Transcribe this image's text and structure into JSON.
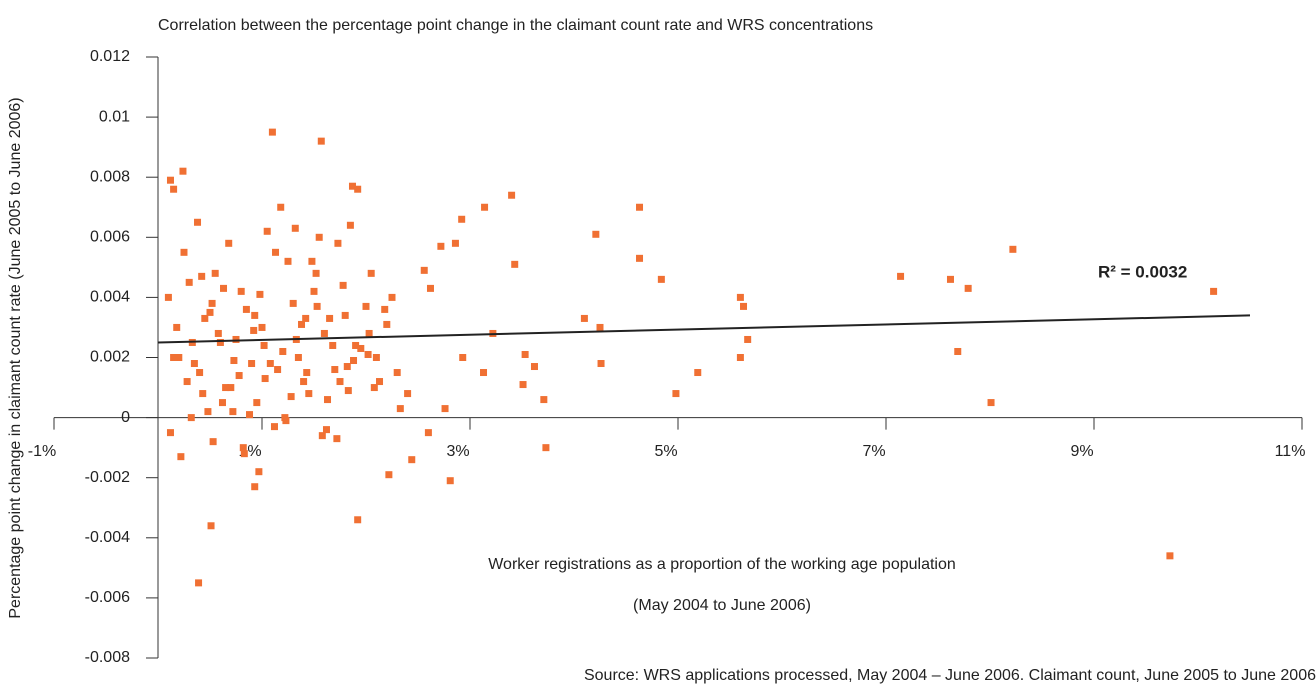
{
  "chart_data": {
    "type": "scatter",
    "title": "Correlation between the percentage point change in the claimant count rate and WRS concentrations",
    "x_label": "Worker registrations as a proportion of the working age population",
    "x_label_2": "(May 2004 to June 2006)",
    "y_label": "Percentage point change in claimant count rate (June 2005 to June 2006)",
    "source": "Source: WRS applications processed, May 2004 – June 2006. Claimant count, June 2005 to June 2006",
    "annotation": "R² = 0.0032",
    "color": "#f07033",
    "xlim": [
      -1,
      11
    ],
    "xticks": [
      {
        "value": -1,
        "label": "-1%"
      },
      {
        "value": 1,
        "label": "1%"
      },
      {
        "value": 3,
        "label": "3%"
      },
      {
        "value": 5,
        "label": "5%"
      },
      {
        "value": 7,
        "label": "7%"
      },
      {
        "value": 9,
        "label": "9%"
      },
      {
        "value": 11,
        "label": "11%"
      }
    ],
    "ylim": [
      -0.008,
      0.012
    ],
    "yticks": [
      -0.008,
      -0.006,
      -0.004,
      -0.002,
      0,
      0.002,
      0.004,
      0.006,
      0.008,
      0.01,
      0.012
    ],
    "trendline": {
      "x": [
        0,
        10.5
      ],
      "values": [
        0.0025,
        0.0034
      ]
    },
    "x": [
      1.1,
      1.57,
      0.24,
      0.12,
      0.15,
      1.87,
      1.92,
      3.4,
      3.14,
      4.63,
      2.92,
      4.21,
      4.63,
      8.22,
      3.43,
      4.84,
      7.14,
      7.62,
      7.79,
      10.15,
      5.6,
      5.63,
      4.1,
      4.25,
      5.67,
      7.69,
      5.6,
      5.19,
      4.26,
      4.98,
      8.01,
      3.71,
      3.73,
      2.81,
      1.92,
      0.51,
      0.39,
      9.73,
      0.93,
      0.97,
      3.13,
      3.51,
      3.62,
      3.53,
      3.22,
      2.62,
      2.56,
      2.72,
      2.86,
      2.93,
      2.76,
      2.6,
      2.44,
      2.22,
      0.1,
      0.2,
      0.3,
      0.4,
      0.5,
      0.6,
      0.7,
      0.8,
      0.9,
      1.0,
      1.2,
      1.3,
      1.4,
      1.5,
      1.6,
      1.7,
      1.8,
      1.9,
      2.0,
      2.1,
      2.2,
      2.3,
      0.15,
      0.25,
      0.35,
      0.45,
      0.55,
      0.65,
      0.75,
      0.85,
      0.95,
      1.05,
      1.15,
      1.25,
      1.35,
      1.45,
      1.55,
      1.65,
      1.75,
      1.85,
      1.95,
      2.05,
      2.25,
      2.4,
      0.12,
      0.28,
      0.38,
      0.48,
      0.58,
      0.68,
      0.78,
      0.88,
      0.98,
      1.08,
      1.18,
      1.28,
      1.38,
      1.48,
      1.58,
      1.68,
      1.78,
      1.88,
      2.08,
      2.18,
      0.18,
      0.33,
      0.43,
      0.53,
      0.63,
      0.73,
      0.83,
      0.93,
      1.03,
      1.13,
      1.23,
      1.33,
      1.43,
      1.53,
      1.63,
      1.73,
      1.83,
      2.03,
      2.13,
      2.33,
      0.22,
      0.42,
      0.62,
      0.82,
      1.02,
      1.22,
      1.42,
      1.62,
      1.82,
      2.02,
      0.32,
      0.72,
      1.12,
      1.52,
      0.52,
      0.92,
      1.32,
      1.72
    ],
    "values": [
      0.0095,
      0.0092,
      0.0082,
      0.0079,
      0.0076,
      0.0077,
      0.0076,
      0.0074,
      0.007,
      0.007,
      0.0066,
      0.0061,
      0.0053,
      0.0056,
      0.0051,
      0.0046,
      0.0047,
      0.0046,
      0.0043,
      0.0042,
      0.004,
      0.0037,
      0.0033,
      0.003,
      0.0026,
      0.0022,
      0.002,
      0.0015,
      0.0018,
      0.0008,
      0.0005,
      0.0006,
      -0.001,
      -0.0021,
      -0.0034,
      -0.0036,
      -0.0055,
      -0.0046,
      -0.0023,
      -0.0018,
      0.0015,
      0.0011,
      0.0017,
      0.0021,
      0.0028,
      0.0043,
      0.0049,
      0.0057,
      0.0058,
      0.002,
      0.0003,
      -0.0005,
      -0.0014,
      -0.0019,
      0.004,
      0.002,
      0.0045,
      0.0015,
      0.0035,
      0.0025,
      0.001,
      0.0042,
      0.0018,
      0.003,
      0.0022,
      0.0038,
      0.0012,
      0.0042,
      0.0028,
      0.0016,
      0.0034,
      0.0024,
      0.0037,
      0.002,
      0.0031,
      0.0015,
      0.002,
      0.0055,
      0.0018,
      0.0033,
      0.0048,
      0.001,
      0.0026,
      0.0036,
      0.0005,
      0.0062,
      0.0016,
      0.0052,
      0.002,
      0.0008,
      0.006,
      0.0033,
      0.0012,
      0.0064,
      0.0023,
      0.0048,
      0.004,
      0.0008,
      -0.0005,
      0.0012,
      0.0065,
      0.0002,
      0.0028,
      0.0058,
      0.0014,
      0.0001,
      0.0041,
      0.0018,
      0.007,
      0.0007,
      0.0031,
      0.0052,
      -0.0006,
      0.0024,
      0.0044,
      0.0019,
      0.001,
      0.0036,
      0.003,
      0.0025,
      0.0008,
      -0.0008,
      0.0043,
      0.0019,
      -0.0012,
      0.0034,
      0.0013,
      0.0055,
      -0.0001,
      0.0026,
      0.0015,
      0.0037,
      0.0006,
      0.0058,
      0.0009,
      0.0028,
      0.0012,
      0.0003,
      -0.0013,
      0.0047,
      0.0005,
      -0.001,
      0.0024,
      0.0,
      0.0033,
      -0.0004,
      0.0017,
      0.0021,
      0.0,
      0.0002,
      -0.0003,
      0.0048,
      0.0038,
      0.0029,
      0.0063,
      -0.0007
    ]
  }
}
